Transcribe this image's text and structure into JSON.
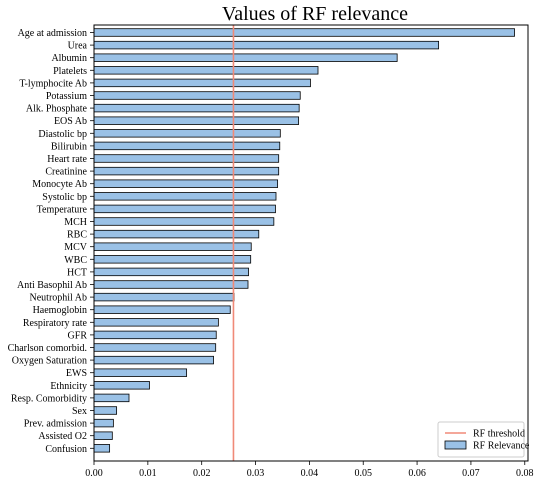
{
  "chart_data": {
    "type": "bar",
    "orientation": "horizontal",
    "title": "Values of RF relevance",
    "xlabel": "",
    "ylabel": "",
    "xlim": [
      0,
      0.0806
    ],
    "xticks": [
      "0.00",
      "0.01",
      "0.02",
      "0.03",
      "0.04",
      "0.05",
      "0.06",
      "0.07",
      "0.08"
    ],
    "grid": false,
    "legend_position": "bottom-right",
    "bar_color": "#9ac1e6",
    "bar_edge_color": "#000000",
    "threshold_color": "#f08a78",
    "categories": [
      "Age at admission",
      "Urea",
      "Albumin",
      "Platelets",
      "T-lymphocite Ab",
      "Potassium",
      "Alk. Phosphate",
      "EOS Ab",
      "Diastolic bp",
      "Bilirubin",
      "Heart rate",
      "Creatinine",
      "Monocyte Ab",
      "Systolic bp",
      "Temperature",
      "MCH",
      "RBC",
      "MCV",
      "WBC",
      "HCT",
      "Anti Basophil Ab",
      "Neutrophil Ab",
      "Haemoglobin",
      "Respiratory rate",
      "GFR",
      "Charlson comorbid.",
      "Oxygen Saturation",
      "EWS",
      "Ethnicity",
      "Resp. Comorbidity",
      "Sex",
      "Prev. admission",
      "Assisted O2",
      "Confusion"
    ],
    "series": [
      {
        "name": "RF Relevance",
        "values": [
          0.0781,
          0.064,
          0.0563,
          0.0416,
          0.0402,
          0.0383,
          0.0381,
          0.038,
          0.0346,
          0.0345,
          0.0343,
          0.0343,
          0.0341,
          0.0338,
          0.0337,
          0.0334,
          0.0306,
          0.0292,
          0.0291,
          0.0287,
          0.0286,
          0.026,
          0.0253,
          0.0231,
          0.0227,
          0.0226,
          0.0222,
          0.0172,
          0.0103,
          0.0065,
          0.0042,
          0.0036,
          0.0034,
          0.0029
        ]
      }
    ],
    "threshold": {
      "name": "RF threshold",
      "value": 0.0259
    }
  }
}
